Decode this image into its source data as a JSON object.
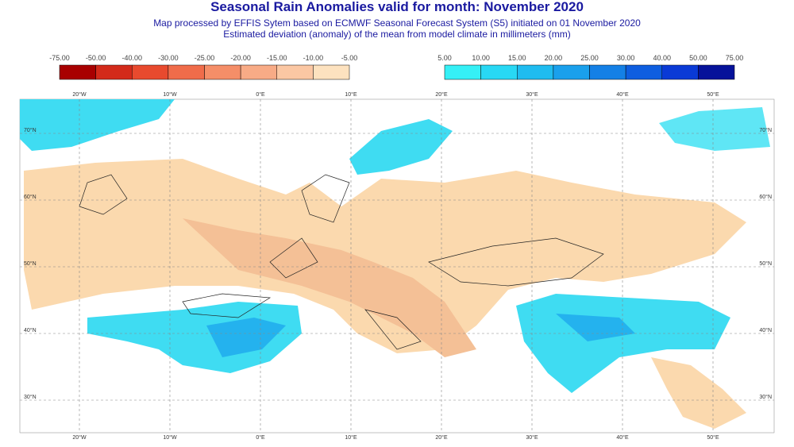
{
  "header": {
    "title": "Seasonal Rain Anomalies valid for month: November 2020",
    "subtitle": "Map processed by EFFIS Sytem based on ECMWF Seasonal Forecast System (S5) initiated on 01 November 2020",
    "description": "Estimated deviation (anomaly) of the mean from model climate in millimeters (mm)"
  },
  "legend": {
    "negative": {
      "labels": [
        "-75.00",
        "-50.00",
        "-40.00",
        "-30.00",
        "-25.00",
        "-20.00",
        "-15.00",
        "-10.00",
        "-5.00"
      ],
      "colors": [
        "#a80000",
        "#d32a1a",
        "#e84a2e",
        "#f06c4a",
        "#f58e68",
        "#f8ab86",
        "#fbc7a3",
        "#fde2bf"
      ]
    },
    "positive": {
      "labels": [
        "5.00",
        "10.00",
        "15.00",
        "20.00",
        "25.00",
        "30.00",
        "40.00",
        "50.00",
        "75.00"
      ],
      "colors": [
        "#35f0f6",
        "#28d8f4",
        "#1fbcf0",
        "#1aa0ec",
        "#1480e6",
        "#0e5ee0",
        "#0a3ad6",
        "#06129a"
      ]
    }
  },
  "map": {
    "lon_labels": [
      "20°W",
      "10°W",
      "0°E",
      "10°E",
      "20°E",
      "30°E",
      "40°E",
      "50°E"
    ],
    "lat_labels": [
      "70°N",
      "60°N",
      "50°N",
      "40°N",
      "30°N"
    ]
  }
}
